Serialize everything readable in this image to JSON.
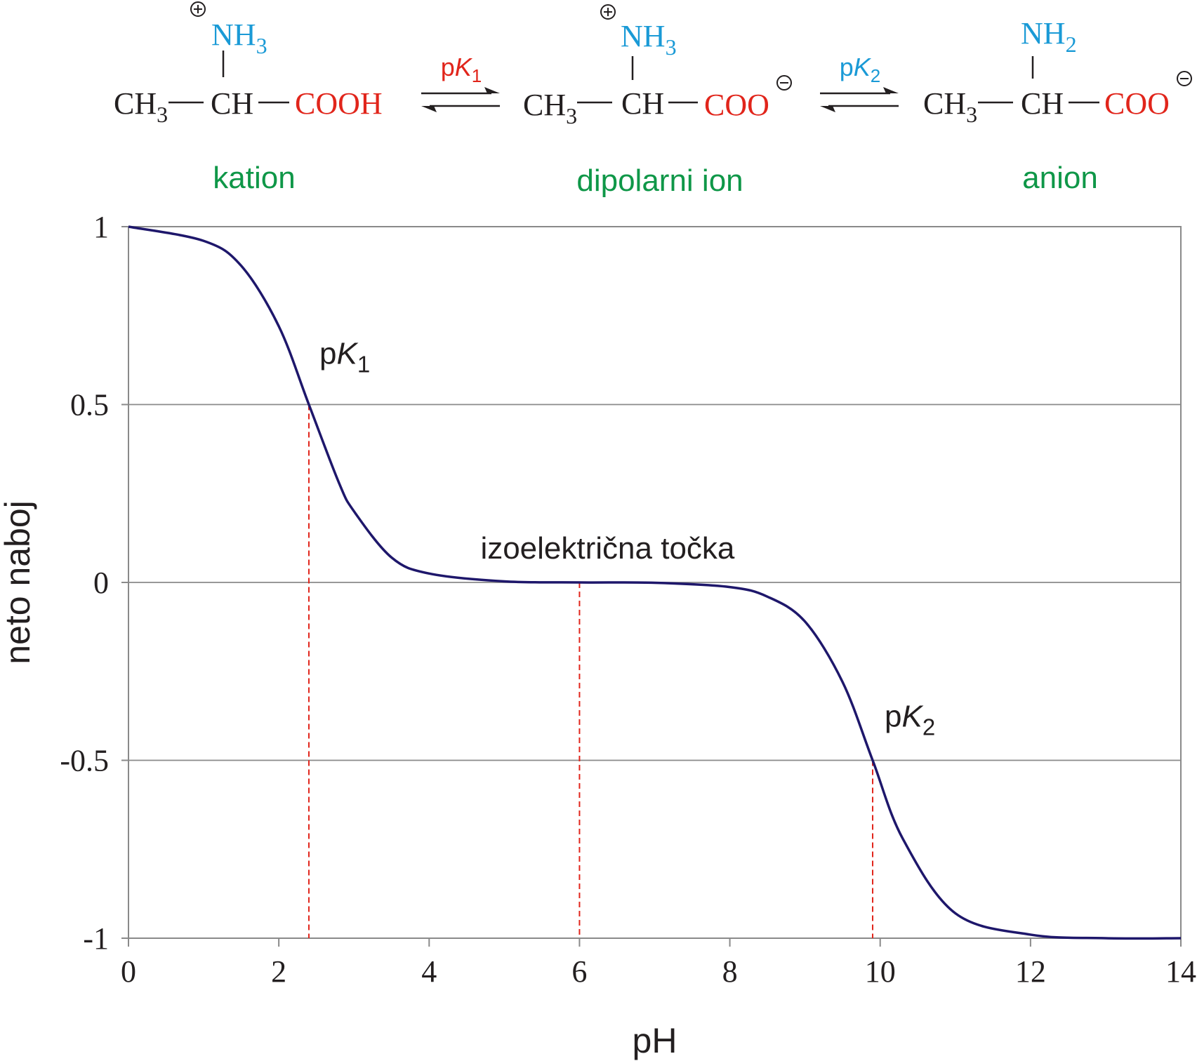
{
  "colors": {
    "black": "#231f20",
    "amine": "#1a9ad6",
    "carboxyl": "#e1251b",
    "species_label": "#0f9748",
    "curve": "#1e176b",
    "guide": "#e1251b",
    "grid": "#8a8a8a"
  },
  "scheme": {
    "species": [
      {
        "label": "kation",
        "ch3": "CH",
        "ch3_sub": "3",
        "ch": "CH",
        "amine": "NH",
        "amine_sub": "3",
        "amine_charge": "+",
        "acid": "COOH",
        "acid_charge": ""
      },
      {
        "label": "dipolarni ion",
        "ch3": "CH",
        "ch3_sub": "3",
        "ch": "CH",
        "amine": "NH",
        "amine_sub": "3",
        "amine_charge": "+",
        "acid": "COO",
        "acid_charge": "−"
      },
      {
        "label": "anion",
        "ch3": "CH",
        "ch3_sub": "3",
        "ch": "CH",
        "amine": "NH",
        "amine_sub": "2",
        "amine_charge": "",
        "acid": "COO",
        "acid_charge": "−"
      }
    ],
    "equilibria": [
      {
        "p": "p",
        "k": "K",
        "sub": "1",
        "color": "#e1251b"
      },
      {
        "p": "p",
        "k": "K",
        "sub": "2",
        "color": "#1a9ad6"
      }
    ]
  },
  "chart_data": {
    "type": "line",
    "xlabel": "pH",
    "ylabel": "neto naboj",
    "xlim": [
      0,
      14
    ],
    "ylim": [
      -1,
      1
    ],
    "xticks": [
      "0",
      "2",
      "4",
      "6",
      "8",
      "10",
      "12",
      "14"
    ],
    "yticks": [
      "1",
      "0.5",
      "0",
      "-0.5",
      "-1"
    ],
    "grid": "horizontal",
    "pK1": 2.4,
    "pK2": 9.9,
    "isoelectric_point": 6.0,
    "series": [
      {
        "values_desc": "",
        "x": [
          0,
          1,
          1.5,
          2,
          2.4,
          2.8,
          3,
          3.5,
          4,
          5,
          6,
          7,
          8,
          8.5,
          9,
          9.5,
          9.9,
          10.3,
          11,
          12,
          13,
          14
        ],
        "y": [
          1.0,
          0.96,
          0.89,
          0.72,
          0.5,
          0.28,
          0.2,
          0.07,
          0.025,
          0.003,
          0.0,
          -0.001,
          -0.013,
          -0.04,
          -0.11,
          -0.28,
          -0.5,
          -0.72,
          -0.93,
          -0.99,
          -1.0,
          -1.0
        ]
      }
    ],
    "annotations": [
      {
        "p": "p",
        "k": "K",
        "sub": "1",
        "x": 2.4,
        "y": 0.5
      },
      {
        "text": "izoelektrična točka",
        "x": 6.0,
        "y": 0.0
      },
      {
        "p": "p",
        "k": "K",
        "sub": "2",
        "x": 9.9,
        "y": -0.5
      }
    ]
  }
}
